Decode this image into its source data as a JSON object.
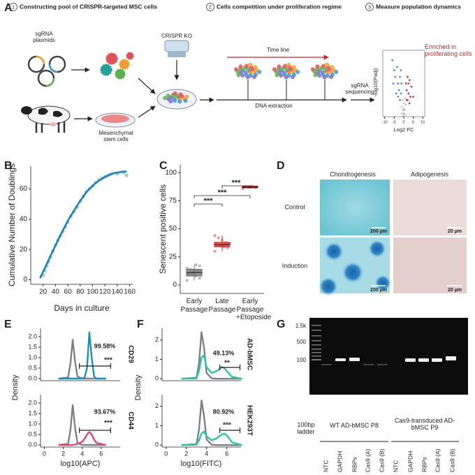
{
  "panel_labels": [
    "A",
    "B",
    "C",
    "D",
    "E",
    "F",
    "G"
  ],
  "panel_a": {
    "steps": [
      {
        "number": "1",
        "text": "Constructing pool of CRISPR-targeted MSC cells"
      },
      {
        "number": "2",
        "text": "Cells competition under proliferation regime"
      },
      {
        "number": "3",
        "text": "Measure population dynamics"
      }
    ],
    "sgrna_label": "sgRNA plasmids",
    "msc_label": "Mesenchymal stem cells",
    "crispr_label": "CRISPR KO",
    "timeline_label": "Time line",
    "dna_label": "DNA extraction",
    "sequencing_label": "sgRNA sequencing"
  },
  "chart_data": [
    {
      "type": "scatter",
      "xlabel": "Log2 FC",
      "ylabel": "-log10(Padj)",
      "annotation": "Enriched in proliferating cells",
      "xlim": [
        -11,
        11
      ],
      "ylim": [
        0,
        10
      ],
      "xticks": [
        -10,
        -5,
        0,
        5,
        10
      ],
      "series": [
        {
          "kind": "points",
          "color": "#3b7cc4",
          "x": [
            -6,
            -5,
            -4.5,
            -3.5,
            -3,
            -2.5,
            -2,
            -1.5,
            -5.5,
            -4,
            -3,
            -2,
            -1.5,
            -1.2
          ],
          "values": [
            8.5,
            7,
            6,
            7.5,
            5,
            4,
            6,
            3.5,
            5,
            3.5,
            3,
            2.5,
            7,
            5
          ]
        },
        {
          "kind": "points",
          "color": "#c0282d",
          "x": [
            1.5,
            2,
            2.5,
            3,
            3.5,
            4,
            2,
            5,
            3,
            1.5,
            1.2,
            2.5
          ],
          "values": [
            4,
            6,
            3.5,
            5.5,
            3,
            4.5,
            2.5,
            3,
            2,
            2.5,
            5,
            5
          ]
        },
        {
          "kind": "points",
          "color": "#bdbdbd",
          "x": [
            -1,
            -0.5,
            0,
            0.5,
            1,
            0,
            -1,
            0.8,
            0.2,
            -0.3,
            -0.6,
            0.6
          ],
          "values": [
            1.5,
            1,
            0.5,
            1,
            1.8,
            2,
            0.5,
            0.3,
            1.2,
            0.2,
            2.5,
            2.8
          ]
        }
      ]
    },
    {
      "type": "scatter",
      "xlabel": "Days in culture",
      "ylabel": "Cumulative Number of Doublings",
      "xlim": [
        0,
        165
      ],
      "ylim": [
        -3,
        75
      ],
      "xticks": [
        20,
        40,
        60,
        80,
        100,
        120,
        140,
        160
      ],
      "yticks": [
        0,
        20,
        40,
        60
      ],
      "series": [
        {
          "kind": "points",
          "color": "#8fc6e0",
          "x": [
            20,
            23,
            26,
            29,
            32,
            36,
            40,
            44,
            48,
            52,
            56,
            60,
            65,
            70,
            75,
            80,
            85,
            90,
            95,
            100,
            105,
            110,
            115,
            120,
            125,
            130,
            140,
            150,
            155
          ],
          "values": [
            3,
            6,
            9,
            12,
            15,
            19,
            23,
            26,
            29,
            32,
            35,
            38,
            42,
            45,
            48,
            52,
            55,
            58,
            60,
            62,
            64,
            66,
            67,
            68,
            69,
            70,
            70,
            71,
            69
          ]
        },
        {
          "kind": "line",
          "color": "#1f7fae",
          "x": [
            15,
            30,
            45,
            60,
            75,
            90,
            105,
            120,
            135,
            150,
            155
          ],
          "values": [
            1,
            14,
            27,
            39,
            49,
            58,
            64,
            68,
            70.5,
            71.5,
            71.5
          ]
        }
      ]
    },
    {
      "type": "box",
      "ylabel": "Senescent positive cells",
      "categories": [
        "Early Passage",
        "Late Passage",
        "Early Passage +Etoposide"
      ],
      "ylim": [
        -7.5,
        107
      ],
      "yticks": [
        0,
        25,
        50,
        75,
        100
      ],
      "significance": [
        "***",
        "***",
        "***"
      ],
      "boxes": [
        {
          "color": "#6e6e6e",
          "whisker_low": 4,
          "q1": 8,
          "median": 11,
          "q3": 14,
          "whisker_high": 18,
          "points": [
            4,
            6,
            8,
            9,
            10,
            11,
            12,
            13,
            14,
            15,
            17,
            18
          ]
        },
        {
          "color": "#d62728",
          "whisker_low": 30,
          "q1": 34,
          "median": 36,
          "q3": 38,
          "whisker_high": 44,
          "points": [
            30,
            33,
            34,
            35,
            36,
            37,
            38,
            40,
            42,
            44
          ]
        },
        {
          "color": "#a50f15",
          "whisker_low": 86,
          "q1": 86.5,
          "median": 87,
          "q3": 88,
          "whisker_high": 88.5,
          "points": [
            86,
            87,
            88
          ]
        }
      ]
    },
    {
      "type": "line",
      "title": "CD29",
      "annotation": "99.58%",
      "significance": "***",
      "xlim": [
        -0.4,
        8
      ],
      "ylim": [
        -0.1,
        2.4
      ],
      "yticks": [
        {
          "value": 0,
          "label": "0.0"
        },
        0.5,
        {
          "value": 1,
          "label": "1.0"
        },
        1.5,
        {
          "value": 2,
          "label": "2.0"
        }
      ],
      "x": [
        1.5,
        2.5,
        2.75,
        3,
        3.25,
        3.5,
        4,
        4.25,
        4.5,
        4.75,
        5,
        5.25,
        5.5,
        6.5
      ],
      "series": [
        {
          "color": "#808080",
          "values": [
            0,
            0.05,
            0.7,
            1.85,
            0.8,
            0.1,
            0,
            0,
            0,
            0,
            0,
            0,
            0,
            0
          ]
        },
        {
          "color": "#1f8fb5",
          "values": [
            0,
            0,
            0,
            0,
            0,
            0,
            0,
            0.05,
            0.5,
            2.2,
            1.0,
            0.1,
            0,
            0
          ]
        }
      ]
    },
    {
      "type": "line",
      "title": "CD44",
      "annotation": "93.67%",
      "significance": "***",
      "xlabel": "log10(APC)",
      "ylabel": "Density",
      "xlim": [
        -0.4,
        8
      ],
      "ylim": [
        -0.1,
        2.4
      ],
      "xticks": [
        0,
        2,
        4,
        6
      ],
      "yticks": [
        {
          "value": 0,
          "label": "0.0"
        },
        0.5,
        {
          "value": 1,
          "label": "1.0"
        },
        1.5,
        {
          "value": 2,
          "label": "2.0"
        }
      ],
      "x": [
        1.5,
        2.5,
        2.75,
        3,
        3.25,
        3.5,
        4,
        4.25,
        4.5,
        4.75,
        5,
        5.25,
        5.5,
        6.5
      ],
      "series": [
        {
          "color": "#808080",
          "values": [
            0,
            0.05,
            0.7,
            1.9,
            0.8,
            0.1,
            0,
            0,
            0,
            0,
            0,
            0,
            0,
            0
          ]
        },
        {
          "color": "#e0457b",
          "values": [
            0,
            0,
            0,
            0,
            0.02,
            0.05,
            0.15,
            0.3,
            0.5,
            0.62,
            0.5,
            0.25,
            0.1,
            0
          ]
        }
      ]
    },
    {
      "type": "line",
      "title": "AD-bMSC",
      "annotation": "49.13%",
      "significance": "**",
      "xlim": [
        -0.4,
        7.4
      ],
      "ylim": [
        -0.1,
        2.6
      ],
      "yticks": [
        0,
        1,
        2
      ],
      "x": [
        1.5,
        3,
        3.25,
        3.5,
        3.75,
        4,
        4.5,
        5,
        5.5,
        5.75,
        6,
        6.5,
        7.5
      ],
      "series": [
        {
          "color": "#808080",
          "values": [
            0,
            0.05,
            0.8,
            2.4,
            1.6,
            0.3,
            0.02,
            0,
            0,
            0,
            0,
            0,
            0
          ]
        },
        {
          "color": "#2ec4a0",
          "values": [
            0,
            0.02,
            0.4,
            1.1,
            1.2,
            0.6,
            0.3,
            0.4,
            0.6,
            0.55,
            0.4,
            0.1,
            0
          ]
        }
      ]
    },
    {
      "type": "line",
      "title": "HEK293T",
      "annotation": "80.92%",
      "significance": "***",
      "xlabel": "log10(FITC)",
      "ylabel": "Density",
      "xlim": [
        -0.4,
        7.4
      ],
      "ylim": [
        -0.1,
        2.6
      ],
      "xticks": [
        0,
        2,
        4,
        6
      ],
      "yticks": [
        0,
        1,
        2
      ],
      "x": [
        1.5,
        3,
        3.25,
        3.5,
        3.75,
        4,
        4.5,
        5,
        5.5,
        5.75,
        6,
        6.5,
        7.5
      ],
      "series": [
        {
          "color": "#808080",
          "values": [
            0,
            0.05,
            0.8,
            2.3,
            1.5,
            0.3,
            0.02,
            0,
            0,
            0,
            0,
            0,
            0
          ]
        },
        {
          "color": "#2ec4a0",
          "values": [
            0,
            0.02,
            0.25,
            0.6,
            0.7,
            0.45,
            0.25,
            0.35,
            0.55,
            0.6,
            0.5,
            0.15,
            0
          ]
        }
      ]
    }
  ],
  "panel_d": {
    "columns": [
      "Chondrogenesis",
      "Adipogenesis"
    ],
    "rows": [
      "Control",
      "Induction"
    ],
    "scale_bars": [
      [
        "200 µm",
        "20 µm"
      ],
      [
        "200 µm",
        "20 µm"
      ]
    ]
  },
  "panel_g": {
    "size_markers": [
      "1.5k",
      "500",
      "100"
    ],
    "ladder_label": "100bp ladder",
    "groups": [
      {
        "label": "WT AD-bMSC P8",
        "lanes": [
          "NTC",
          "GAPDH",
          "RBPs",
          "Cas9 (A)",
          "Cas9 (B)"
        ]
      },
      {
        "label": "Cas9-transduced AD-bMSC P9",
        "lanes": [
          "NTC",
          "GAPDH",
          "RBPs",
          "Cas9 (A)",
          "Cas9 (B)"
        ]
      }
    ]
  }
}
